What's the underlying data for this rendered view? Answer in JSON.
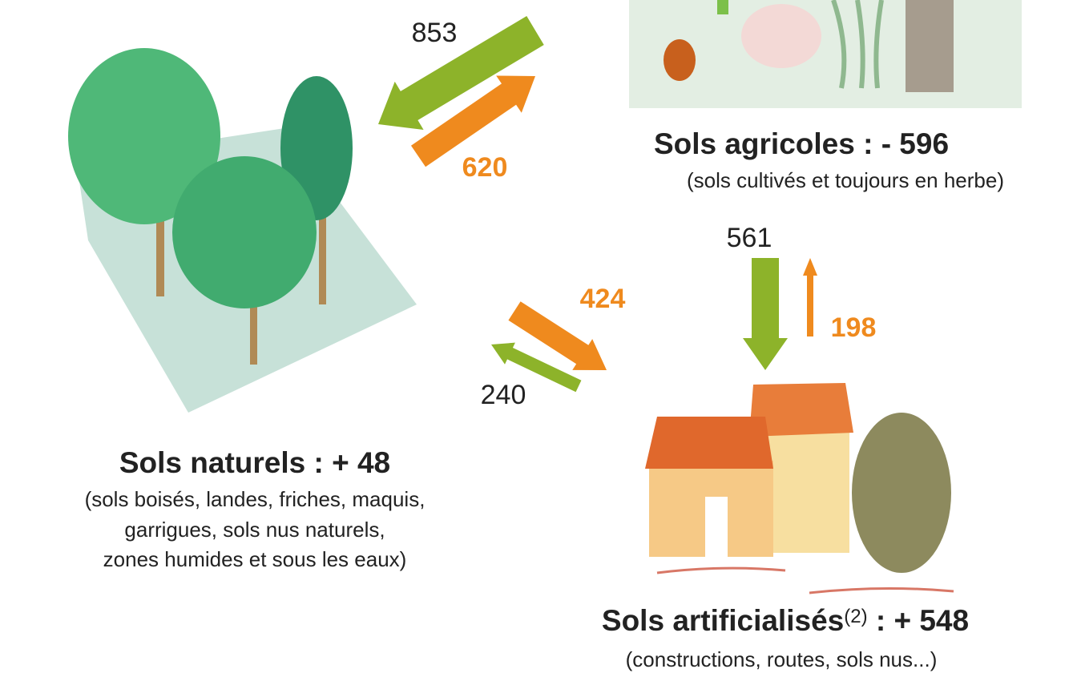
{
  "nodes": [
    {
      "heading": "Sols naturels : + 48",
      "description": [
        "(sols boisés, landes, friches, maquis,",
        "garrigues, sols nus naturels,",
        "zones humides et sous les eaux)"
      ]
    },
    {
      "heading": "Sols agricoles : - 596",
      "description": [
        "(sols cultivés et toujours en herbe)"
      ]
    },
    {
      "heading": "Sols artificialisés",
      "note": "(2)",
      "heading_end": " : + 548",
      "description": [
        "(constructions, routes, sols nus...)"
      ]
    }
  ],
  "flows": [
    {
      "label": 853
    },
    {
      "label": 620
    },
    {
      "label": 561
    },
    {
      "label": 198
    },
    {
      "label": 424
    },
    {
      "label": 240
    }
  ]
}
